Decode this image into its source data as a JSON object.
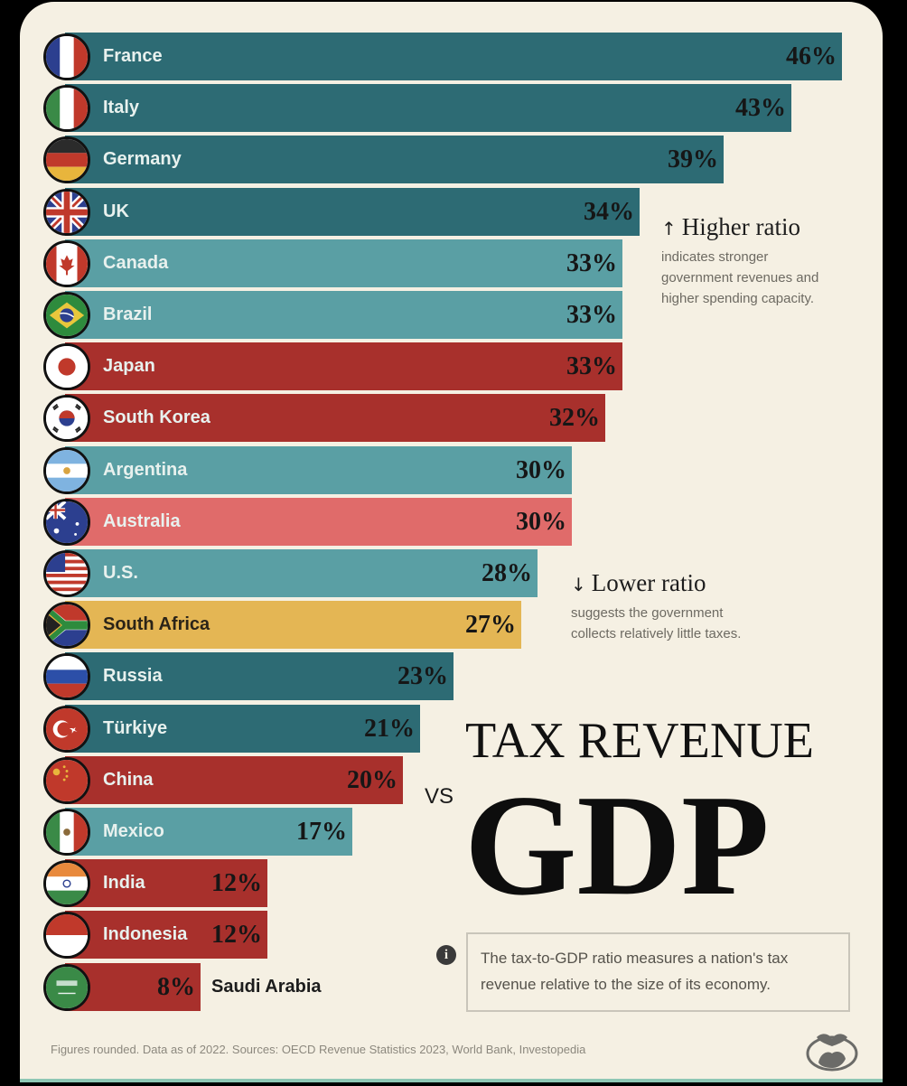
{
  "chart_data": {
    "type": "bar",
    "orientation": "horizontal",
    "title": "TAX REVENUE VS GDP",
    "title_parts": {
      "top": "TAX REVENUE",
      "connector": "VS",
      "main": "GDP"
    },
    "value_suffix": "%",
    "categories": [
      "France",
      "Italy",
      "Germany",
      "UK",
      "Canada",
      "Brazil",
      "Japan",
      "South Korea",
      "Argentina",
      "Australia",
      "U.S.",
      "South Africa",
      "Russia",
      "Türkiye",
      "China",
      "Mexico",
      "India",
      "Indonesia",
      "Saudi Arabia"
    ],
    "values": [
      46,
      43,
      39,
      34,
      33,
      33,
      33,
      32,
      30,
      30,
      28,
      27,
      23,
      21,
      20,
      17,
      12,
      12,
      8
    ],
    "bar_colors": [
      "#2d6b74",
      "#2d6b74",
      "#2d6b74",
      "#2d6b74",
      "#5a9fa4",
      "#5a9fa4",
      "#a8302c",
      "#a8302c",
      "#5a9fa4",
      "#e06b6a",
      "#5a9fa4",
      "#e4b654",
      "#2d6b74",
      "#2d6b74",
      "#a8302c",
      "#5a9fa4",
      "#a8302c",
      "#a8302c",
      "#a8302c"
    ],
    "flags": [
      "france-flag",
      "italy-flag",
      "germany-flag",
      "uk-flag",
      "canada-flag",
      "brazil-flag",
      "japan-flag",
      "south-korea-flag",
      "argentina-flag",
      "australia-flag",
      "us-flag",
      "south-africa-flag",
      "russia-flag",
      "turkiye-flag",
      "china-flag",
      "mexico-flag",
      "india-flag",
      "indonesia-flag",
      "saudi-arabia-flag"
    ],
    "xlim": [
      0,
      46
    ],
    "grid": false,
    "legend": "none"
  },
  "annotations": {
    "higher": {
      "arrow": "↑",
      "title": "Higher ratio",
      "body": [
        "indicates stronger",
        "government revenues and",
        "higher spending capacity."
      ]
    },
    "lower": {
      "arrow": "↓",
      "title": "Lower ratio",
      "body": [
        "suggests the government",
        "collects relatively little taxes."
      ]
    }
  },
  "info": {
    "icon": "info-icon",
    "lines": [
      "The tax-to-GDP ratio measures a nation's tax",
      "revenue relative to the size of its economy."
    ]
  },
  "footer": "Figures rounded. Data as of 2022. Sources: OECD Revenue Statistics 2023, World Bank, Investopedia",
  "colors": {
    "background": "#f5f0e3",
    "dark_teal": "#2d6b74",
    "light_teal": "#5a9fa4",
    "red": "#a8302c",
    "pink": "#e06b6a",
    "yellow": "#e4b654"
  }
}
